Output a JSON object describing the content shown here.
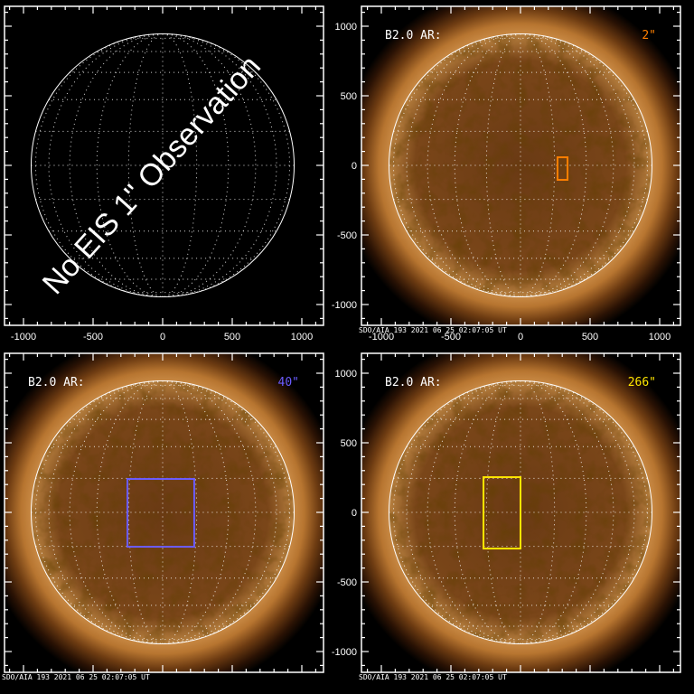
{
  "figure": {
    "x_ticks": [
      -1000,
      -500,
      0,
      500,
      1000
    ],
    "y_ticks": [
      1000,
      500,
      0,
      -500,
      -1000
    ],
    "axis_range_arcsec": [
      -1150,
      1150
    ],
    "footer": "SDO/AIA 193   2021 06 25 02:07:05 UT",
    "panels": [
      {
        "id": "no-observation",
        "has_image": false,
        "overlay_text": "No EIS 1\" Observation",
        "show_x_labels": true,
        "show_footer": false
      },
      {
        "id": "eis-2",
        "has_image": true,
        "label": "B2.0 AR:",
        "slit": "2\"",
        "color": "#ff7f00",
        "fov_arcsec": {
          "x": [
            266,
            338
          ],
          "y": [
            -104,
            58
          ]
        },
        "show_x_labels": true,
        "show_footer": true
      },
      {
        "id": "eis-40",
        "has_image": true,
        "label": "B2.0 AR:",
        "slit": "40\"",
        "color": "#6b5cff",
        "fov_arcsec": {
          "x": [
            -253,
            227
          ],
          "y": [
            -247,
            240
          ]
        },
        "show_x_labels": false,
        "show_footer": true
      },
      {
        "id": "eis-266",
        "has_image": true,
        "label": "B2.0 AR:",
        "slit": "266\"",
        "color": "#ffe600",
        "fov_arcsec": {
          "x": [
            -266,
            0
          ],
          "y": [
            -260,
            253
          ]
        },
        "show_x_labels": false,
        "show_footer": true
      }
    ]
  }
}
